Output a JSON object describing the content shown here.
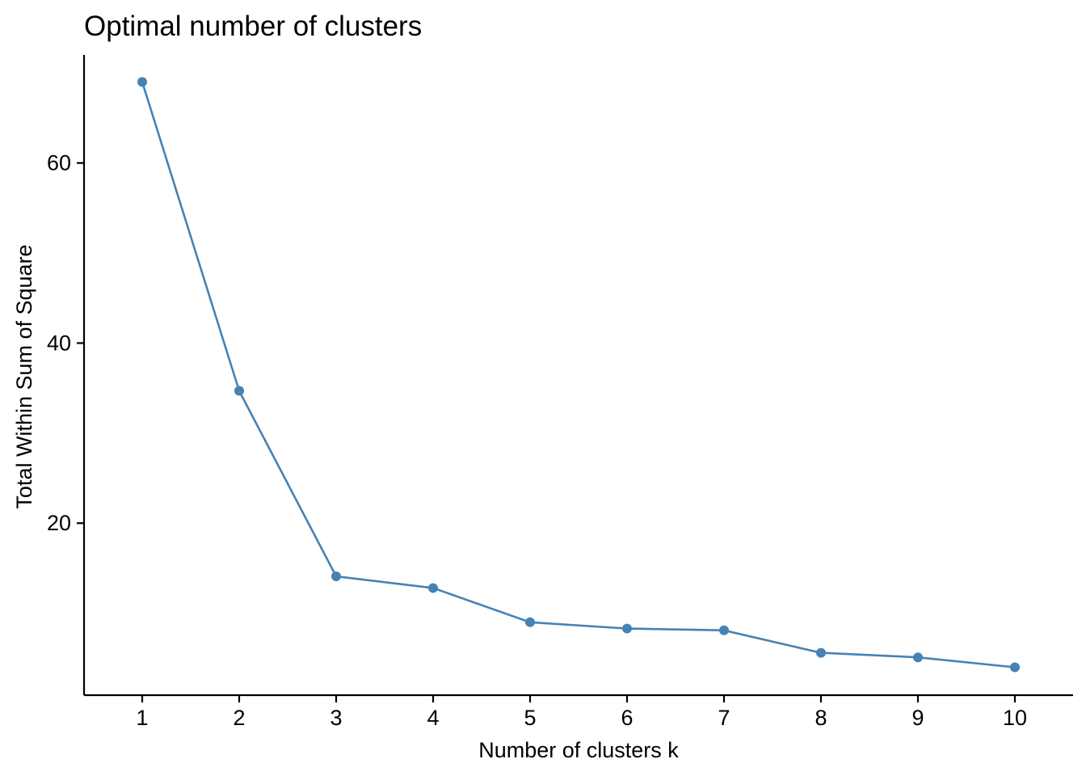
{
  "chart_data": {
    "type": "line",
    "title": "Optimal number of clusters",
    "xlabel": "Number of clusters k",
    "ylabel": "Total Within Sum of Square",
    "x": [
      1,
      2,
      3,
      4,
      5,
      6,
      7,
      8,
      9,
      10
    ],
    "x_tick_labels": [
      "1",
      "2",
      "3",
      "4",
      "5",
      "6",
      "7",
      "8",
      "9",
      "10"
    ],
    "y_ticks": [
      20,
      40,
      60
    ],
    "y_tick_labels": [
      "20",
      "40",
      "60"
    ],
    "xlim": [
      0.4,
      10.6
    ],
    "ylim": [
      0.9,
      72.0
    ],
    "grid": false,
    "series": [
      {
        "color": "#4682B4",
        "values": [
          69.0,
          34.7,
          14.1,
          12.8,
          9.0,
          8.3,
          8.1,
          5.6,
          5.1,
          4.0
        ]
      }
    ]
  }
}
